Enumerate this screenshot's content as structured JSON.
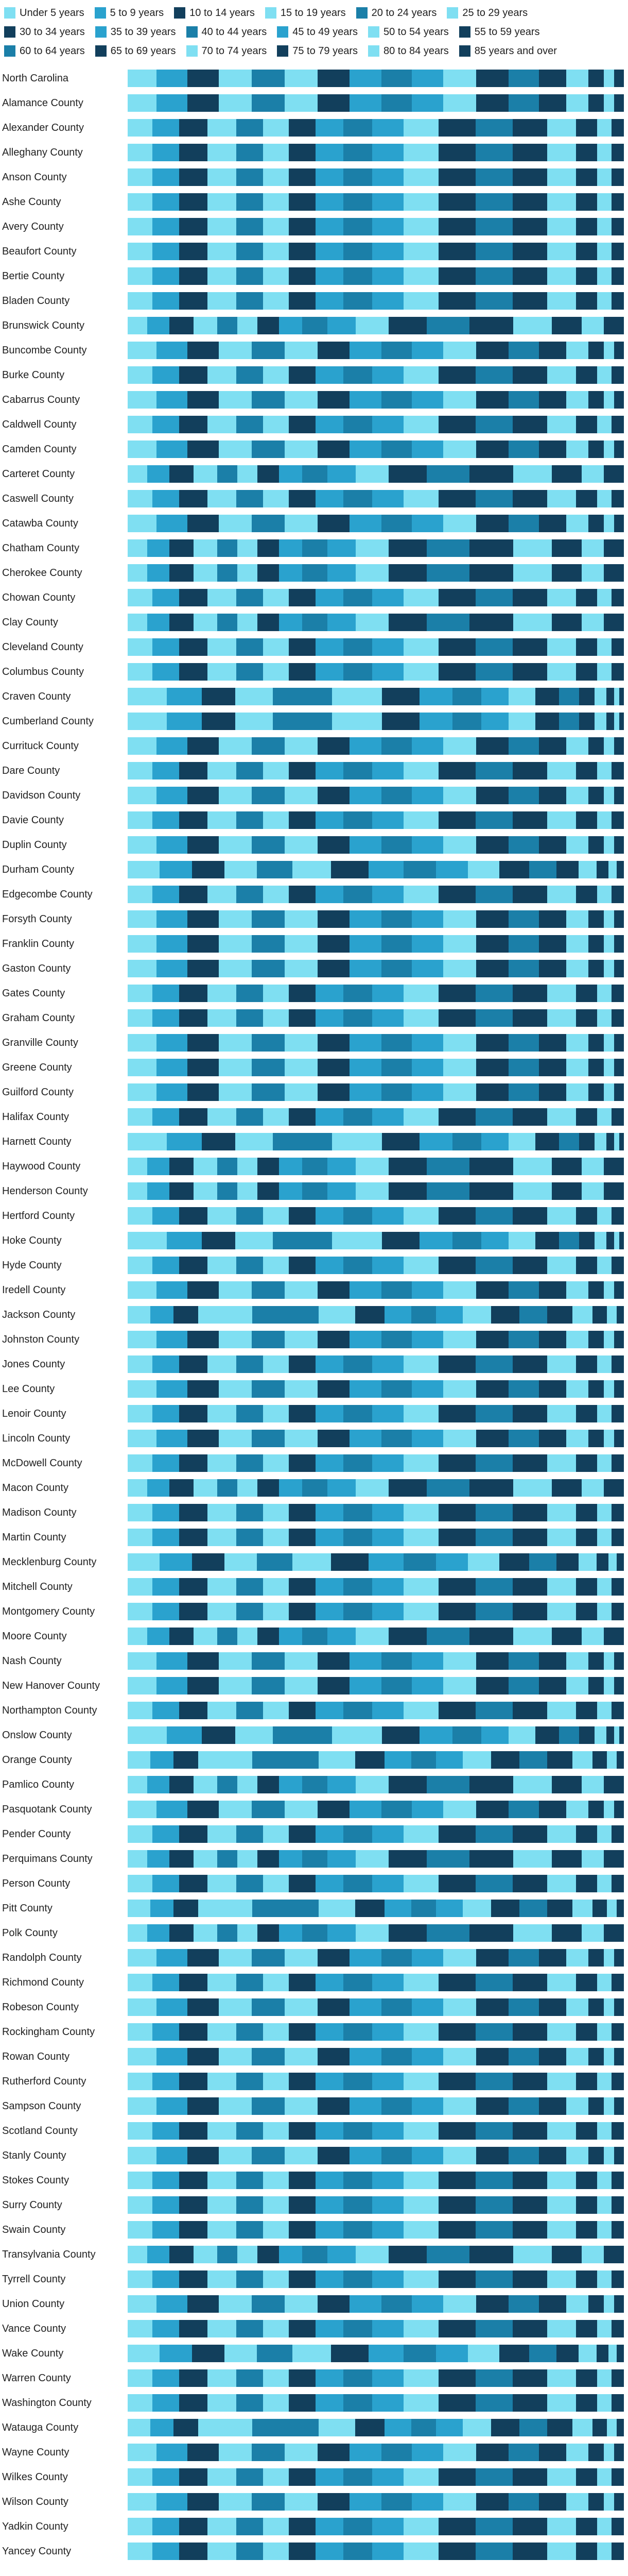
{
  "chart_data": {
    "type": "bar",
    "orientation": "horizontal",
    "stacking": "percent",
    "title": "",
    "xlabel": "",
    "ylabel": "",
    "legend_position": "top",
    "grid": false,
    "categories": [
      "Under 5 years",
      "5 to 9 years",
      "10 to 14 years",
      "15 to 19 years",
      "20 to 24 years",
      "25 to 29 years",
      "30 to 34 years",
      "35 to 39 years",
      "40 to 44 years",
      "45 to 49 years",
      "50 to 54 years",
      "55 to 59 years",
      "60 to 64 years",
      "65 to 69 years",
      "70 to 74 years",
      "75 to 79 years",
      "80 to 84 years",
      "85 years and over"
    ],
    "colors": [
      "#7FDFF2",
      "#2AA2CE",
      "#123F5C",
      "#7FDFF2",
      "#1B7FA8",
      "#7FDFF2",
      "#123F5C",
      "#2AA2CE",
      "#1B7FA8",
      "#2AA2CE",
      "#7FDFF2",
      "#123F5C",
      "#1B7FA8",
      "#123F5C",
      "#7FDFF2",
      "#123F5C",
      "#7FDFF2",
      "#123F5C"
    ],
    "units": "percent of population",
    "distributions": {
      "base": [
        5.8,
        6.1,
        6.3,
        6.5,
        6.6,
        6.6,
        6.4,
        6.3,
        6.1,
        6.3,
        6.5,
        6.5,
        6.1,
        5.4,
        4.4,
        3.1,
        2.1,
        1.9
      ],
      "older": [
        4.9,
        5.3,
        5.6,
        5.7,
        5.2,
        5.1,
        5.3,
        5.5,
        5.7,
        6.2,
        6.9,
        7.3,
        7.3,
        6.8,
        5.7,
        4.2,
        2.9,
        2.4
      ],
      "retire": [
        3.9,
        4.4,
        4.8,
        4.8,
        4.0,
        4.0,
        4.3,
        4.6,
        5.0,
        5.7,
        6.6,
        7.6,
        8.5,
        8.7,
        7.7,
        6.0,
        4.4,
        4.0
      ],
      "college": [
        4.4,
        4.6,
        4.8,
        10.5,
        13.0,
        7.2,
        5.7,
        5.2,
        4.9,
        5.2,
        5.5,
        5.6,
        5.4,
        4.9,
        4.0,
        2.8,
        1.9,
        1.4
      ],
      "military": [
        7.6,
        6.9,
        6.5,
        7.4,
        11.5,
        9.8,
        7.4,
        6.4,
        5.6,
        5.4,
        5.2,
        4.6,
        3.9,
        3.1,
        2.3,
        1.5,
        1.0,
        0.9
      ],
      "young_metro": [
        6.3,
        6.4,
        6.4,
        6.3,
        7.0,
        7.6,
        7.4,
        6.9,
        6.4,
        6.3,
        6.2,
        5.9,
        5.3,
        4.4,
        3.5,
        2.4,
        1.6,
        1.4
      ]
    },
    "rows": [
      {
        "label": "North Carolina",
        "dist": "base"
      },
      {
        "label": "Alamance County",
        "dist": "base"
      },
      {
        "label": "Alexander County",
        "dist": "older"
      },
      {
        "label": "Alleghany County",
        "dist": "older"
      },
      {
        "label": "Anson County",
        "dist": "older"
      },
      {
        "label": "Ashe County",
        "dist": "older"
      },
      {
        "label": "Avery County",
        "dist": "older"
      },
      {
        "label": "Beaufort County",
        "dist": "older"
      },
      {
        "label": "Bertie County",
        "dist": "older"
      },
      {
        "label": "Bladen County",
        "dist": "older"
      },
      {
        "label": "Brunswick County",
        "dist": "retire"
      },
      {
        "label": "Buncombe County",
        "dist": "base"
      },
      {
        "label": "Burke County",
        "dist": "older"
      },
      {
        "label": "Cabarrus County",
        "dist": "base"
      },
      {
        "label": "Caldwell County",
        "dist": "older"
      },
      {
        "label": "Camden County",
        "dist": "base"
      },
      {
        "label": "Carteret County",
        "dist": "retire"
      },
      {
        "label": "Caswell County",
        "dist": "older"
      },
      {
        "label": "Catawba County",
        "dist": "base"
      },
      {
        "label": "Chatham County",
        "dist": "retire"
      },
      {
        "label": "Cherokee County",
        "dist": "retire"
      },
      {
        "label": "Chowan County",
        "dist": "older"
      },
      {
        "label": "Clay County",
        "dist": "retire"
      },
      {
        "label": "Cleveland County",
        "dist": "older"
      },
      {
        "label": "Columbus County",
        "dist": "older"
      },
      {
        "label": "Craven County",
        "dist": "military"
      },
      {
        "label": "Cumberland County",
        "dist": "military"
      },
      {
        "label": "Currituck County",
        "dist": "base"
      },
      {
        "label": "Dare County",
        "dist": "older"
      },
      {
        "label": "Davidson County",
        "dist": "base"
      },
      {
        "label": "Davie County",
        "dist": "older"
      },
      {
        "label": "Duplin County",
        "dist": "base"
      },
      {
        "label": "Durham County",
        "dist": "young_metro"
      },
      {
        "label": "Edgecombe County",
        "dist": "older"
      },
      {
        "label": "Forsyth County",
        "dist": "base"
      },
      {
        "label": "Franklin County",
        "dist": "base"
      },
      {
        "label": "Gaston County",
        "dist": "base"
      },
      {
        "label": "Gates County",
        "dist": "older"
      },
      {
        "label": "Graham County",
        "dist": "older"
      },
      {
        "label": "Granville County",
        "dist": "base"
      },
      {
        "label": "Greene County",
        "dist": "base"
      },
      {
        "label": "Guilford County",
        "dist": "base"
      },
      {
        "label": "Halifax County",
        "dist": "older"
      },
      {
        "label": "Harnett County",
        "dist": "military"
      },
      {
        "label": "Haywood County",
        "dist": "retire"
      },
      {
        "label": "Henderson County",
        "dist": "retire"
      },
      {
        "label": "Hertford County",
        "dist": "older"
      },
      {
        "label": "Hoke County",
        "dist": "military"
      },
      {
        "label": "Hyde County",
        "dist": "older"
      },
      {
        "label": "Iredell County",
        "dist": "base"
      },
      {
        "label": "Jackson County",
        "dist": "college"
      },
      {
        "label": "Johnston County",
        "dist": "base"
      },
      {
        "label": "Jones County",
        "dist": "older"
      },
      {
        "label": "Lee County",
        "dist": "base"
      },
      {
        "label": "Lenoir County",
        "dist": "older"
      },
      {
        "label": "Lincoln County",
        "dist": "base"
      },
      {
        "label": "McDowell County",
        "dist": "older"
      },
      {
        "label": "Macon County",
        "dist": "retire"
      },
      {
        "label": "Madison County",
        "dist": "older"
      },
      {
        "label": "Martin County",
        "dist": "older"
      },
      {
        "label": "Mecklenburg County",
        "dist": "young_metro"
      },
      {
        "label": "Mitchell County",
        "dist": "older"
      },
      {
        "label": "Montgomery County",
        "dist": "older"
      },
      {
        "label": "Moore County",
        "dist": "retire"
      },
      {
        "label": "Nash County",
        "dist": "base"
      },
      {
        "label": "New Hanover County",
        "dist": "base"
      },
      {
        "label": "Northampton County",
        "dist": "older"
      },
      {
        "label": "Onslow County",
        "dist": "military"
      },
      {
        "label": "Orange County",
        "dist": "college"
      },
      {
        "label": "Pamlico County",
        "dist": "retire"
      },
      {
        "label": "Pasquotank County",
        "dist": "base"
      },
      {
        "label": "Pender County",
        "dist": "older"
      },
      {
        "label": "Perquimans County",
        "dist": "retire"
      },
      {
        "label": "Person County",
        "dist": "older"
      },
      {
        "label": "Pitt County",
        "dist": "college"
      },
      {
        "label": "Polk County",
        "dist": "retire"
      },
      {
        "label": "Randolph County",
        "dist": "base"
      },
      {
        "label": "Richmond County",
        "dist": "older"
      },
      {
        "label": "Robeson County",
        "dist": "base"
      },
      {
        "label": "Rockingham County",
        "dist": "older"
      },
      {
        "label": "Rowan County",
        "dist": "base"
      },
      {
        "label": "Rutherford County",
        "dist": "older"
      },
      {
        "label": "Sampson County",
        "dist": "base"
      },
      {
        "label": "Scotland County",
        "dist": "older"
      },
      {
        "label": "Stanly County",
        "dist": "base"
      },
      {
        "label": "Stokes County",
        "dist": "older"
      },
      {
        "label": "Surry County",
        "dist": "older"
      },
      {
        "label": "Swain County",
        "dist": "older"
      },
      {
        "label": "Transylvania County",
        "dist": "retire"
      },
      {
        "label": "Tyrrell County",
        "dist": "older"
      },
      {
        "label": "Union County",
        "dist": "base"
      },
      {
        "label": "Vance County",
        "dist": "older"
      },
      {
        "label": "Wake County",
        "dist": "young_metro"
      },
      {
        "label": "Warren County",
        "dist": "older"
      },
      {
        "label": "Washington County",
        "dist": "older"
      },
      {
        "label": "Watauga County",
        "dist": "college"
      },
      {
        "label": "Wayne County",
        "dist": "base"
      },
      {
        "label": "Wilkes County",
        "dist": "older"
      },
      {
        "label": "Wilson County",
        "dist": "base"
      },
      {
        "label": "Yadkin County",
        "dist": "older"
      },
      {
        "label": "Yancey County",
        "dist": "older"
      }
    ]
  }
}
